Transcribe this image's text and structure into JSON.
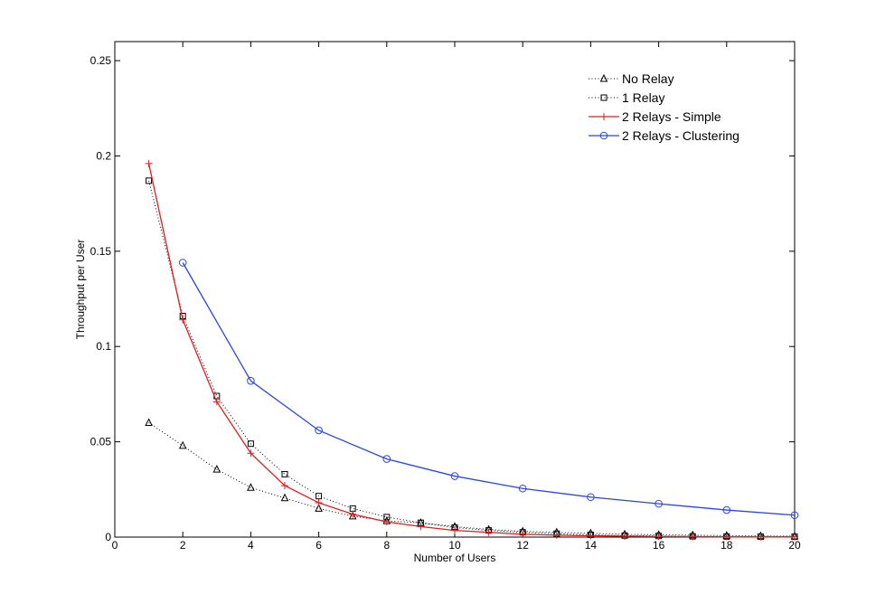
{
  "chart_data": {
    "type": "line",
    "title": "",
    "xlabel": "Number of Users",
    "ylabel": "Throughput per User",
    "xlim": [
      0,
      20
    ],
    "ylim": [
      0,
      0.26
    ],
    "xticks": [
      0,
      2,
      4,
      6,
      8,
      10,
      12,
      14,
      16,
      18,
      20
    ],
    "xtick_labels": [
      "0",
      "2",
      "4",
      "6",
      "8",
      "10",
      "12",
      "14",
      "16",
      "18",
      "20"
    ],
    "yticks": [
      0,
      0.05,
      0.1,
      0.15,
      0.2,
      0.25
    ],
    "ytick_labels": [
      "0",
      "0.05",
      "0.1",
      "0.15",
      "0.2",
      "0.25"
    ],
    "grid": false,
    "legend_position": "top-right",
    "series": [
      {
        "name": "No Relay",
        "color": "#000000",
        "line_style": "dotted",
        "marker": "triangle",
        "x": [
          1,
          2,
          3,
          4,
          5,
          6,
          7,
          8,
          9,
          10,
          11,
          12,
          13,
          14,
          15,
          16,
          17,
          18,
          19,
          20
        ],
        "y": [
          0.06,
          0.048,
          0.0355,
          0.026,
          0.0205,
          0.015,
          0.011,
          0.0085,
          0.0075,
          0.0055,
          0.004,
          0.003,
          0.0025,
          0.002,
          0.0015,
          0.0012,
          0.001,
          0.0008,
          0.0006,
          0.0005
        ]
      },
      {
        "name": "1 Relay",
        "color": "#000000",
        "line_style": "dotted",
        "marker": "square",
        "x": [
          1,
          2,
          3,
          4,
          5,
          6,
          7,
          8,
          9,
          10,
          11,
          12,
          13,
          14,
          15,
          16,
          17,
          18,
          19,
          20
        ],
        "y": [
          0.187,
          0.116,
          0.074,
          0.049,
          0.033,
          0.0215,
          0.015,
          0.0105,
          0.0075,
          0.005,
          0.0035,
          0.0025,
          0.0018,
          0.0012,
          0.0008,
          0.0006,
          0.0004,
          0.0003,
          0.0002,
          0.0002
        ]
      },
      {
        "name": "2 Relays - Simple",
        "color": "#e41a1c",
        "line_style": "solid",
        "marker": "plus",
        "x": [
          1,
          2,
          3,
          4,
          5,
          6,
          7,
          8,
          9,
          10,
          11,
          12,
          13,
          14,
          15,
          16,
          17,
          18,
          19,
          20
        ],
        "y": [
          0.196,
          0.114,
          0.071,
          0.044,
          0.027,
          0.018,
          0.012,
          0.008,
          0.0055,
          0.0035,
          0.0025,
          0.0015,
          0.001,
          0.0007,
          0.0005,
          0.0003,
          0.0002,
          0.0001,
          0.0001,
          0.0001
        ]
      },
      {
        "name": "2 Relays - Clustering",
        "color": "#2a44e6",
        "line_style": "solid",
        "marker": "circle",
        "x": [
          2,
          4,
          6,
          8,
          10,
          12,
          14,
          16,
          18,
          20
        ],
        "y": [
          0.144,
          0.082,
          0.056,
          0.041,
          0.032,
          0.0255,
          0.021,
          0.0175,
          0.0142,
          0.0115
        ]
      }
    ]
  }
}
